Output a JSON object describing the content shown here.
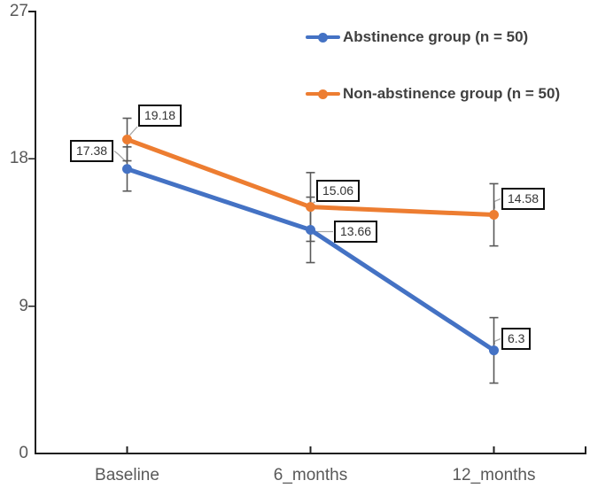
{
  "chart_data": {
    "type": "line",
    "title": "",
    "categories": [
      "Baseline",
      "6_months",
      "12_months"
    ],
    "series": [
      {
        "name": "Abstinence group (n = 50)",
        "color": "#4472C4",
        "values": [
          17.38,
          13.66,
          6.3
        ],
        "error_bars": [
          1.35,
          2.0,
          2.0
        ],
        "point_labels": [
          "17.38",
          "13.66",
          "6.3"
        ]
      },
      {
        "name": "Non-abstinence group (n = 50)",
        "color": "#ED7D31",
        "values": [
          19.18,
          15.06,
          14.58
        ],
        "error_bars": [
          1.3,
          2.1,
          1.9
        ],
        "point_labels": [
          "19.18",
          "15.06",
          "14.58"
        ]
      }
    ],
    "xlabel": "",
    "ylabel": "",
    "ylim": [
      0,
      27
    ],
    "yticks": [
      27,
      18,
      9,
      0
    ],
    "ytick_labels": [
      "27",
      "18",
      "9",
      "0"
    ],
    "grid": false,
    "legend_position": "top-right",
    "marker": "circle"
  },
  "colors": {
    "axis": "#1f1f1f",
    "tick_label": "#595959",
    "legend_text": "#404040",
    "error_bar": "#595959",
    "leader_line": "#a6a6a6",
    "label_box_border": "#0f0f0f",
    "label_box_fill": "#ffffff",
    "label_text": "#333333",
    "background": "#ffffff"
  }
}
